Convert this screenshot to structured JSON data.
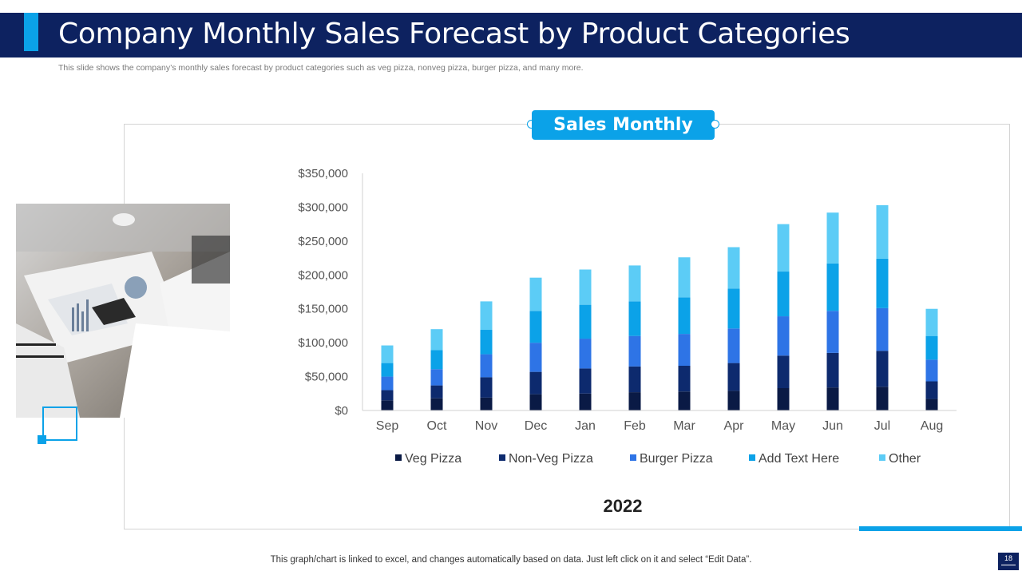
{
  "slide": {
    "title": "Company Monthly Sales Forecast by Product Categories",
    "subtitle": "This slide shows the company’s monthly sales forecast by product categories such as veg pizza,  nonveg pizza,  burger pizza,  and many more.",
    "footer_note": "This graph/chart is linked to excel,  and changes automatically based on data. Just left click on it and select “Edit Data”.",
    "page_number": "18"
  },
  "photo": {
    "icon": "business-meeting-photo"
  },
  "colors": {
    "title_bar": "#0d2260",
    "accent": "#0ba2e8"
  },
  "chart_data": {
    "type": "bar",
    "stacked": true,
    "title": "Sales Monthly",
    "xlabel": "2022",
    "ylabel": "",
    "ylim": [
      0,
      350000
    ],
    "y_ticks": [
      "$0",
      "$50,000",
      "$100,000",
      "$150,000",
      "$200,000",
      "$250,000",
      "$300,000",
      "$350,000"
    ],
    "y_tick_values": [
      0,
      50000,
      100000,
      150000,
      200000,
      250000,
      300000,
      350000
    ],
    "categories": [
      "Sep",
      "Oct",
      "Nov",
      "Dec",
      "Jan",
      "Feb",
      "Mar",
      "Apr",
      "May",
      "Jun",
      "Jul",
      "Aug"
    ],
    "legend_position": "bottom",
    "series": [
      {
        "name": "Veg Pizza",
        "color": "#0a1a45",
        "values": [
          15000,
          18000,
          19000,
          24000,
          25000,
          27000,
          28000,
          29000,
          33000,
          34000,
          35000,
          17000
        ]
      },
      {
        "name": "Non-Veg Pizza",
        "color": "#0d2a6e",
        "values": [
          15000,
          19000,
          30000,
          33000,
          37000,
          38000,
          38000,
          41000,
          48000,
          51000,
          53000,
          26000
        ]
      },
      {
        "name": "Burger Pizza",
        "color": "#2e74e6",
        "values": [
          20000,
          24000,
          34000,
          43000,
          44000,
          45000,
          47000,
          51000,
          58000,
          62000,
          63000,
          32000
        ]
      },
      {
        "name": "Add Text Here",
        "color": "#0ba2e8",
        "values": [
          20000,
          28000,
          36000,
          47000,
          50000,
          51000,
          54000,
          59000,
          66000,
          70000,
          73000,
          35000
        ]
      },
      {
        "name": "Other",
        "color": "#5cccf6",
        "values": [
          26000,
          31000,
          42000,
          49000,
          52000,
          53000,
          59000,
          61000,
          70000,
          75000,
          79000,
          40000
        ]
      }
    ]
  }
}
